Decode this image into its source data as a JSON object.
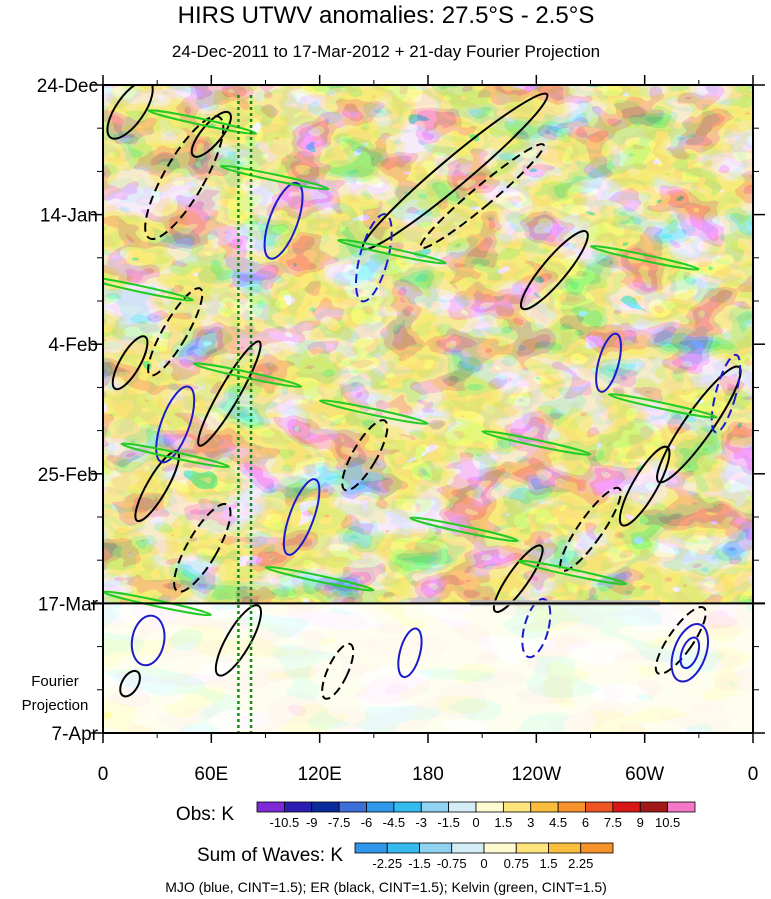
{
  "chart_data": {
    "type": "heatmap",
    "title": "HIRS UTWV anomalies: 27.5°S - 2.5°S",
    "subtitle": "24-Dec-2011 to 17-Mar-2012 + 21-day Fourier Projection",
    "x_ticks": [
      "0",
      "60E",
      "120E",
      "180",
      "120W",
      "60W",
      "0"
    ],
    "x_range_deg": [
      0,
      360
    ],
    "y_ticks": [
      "24-Dec",
      "14-Jan",
      "4-Feb",
      "25-Feb",
      "17-Mar",
      "7-Apr"
    ],
    "y_range_days": [
      0,
      105
    ],
    "projection_start_day": 84,
    "projection_label_line1": "Fourier",
    "projection_label_line2": "Projection",
    "obs_colorbar": {
      "label": "Obs: K",
      "levels": [
        "-10.5",
        "-9",
        "-7.5",
        "-6",
        "-4.5",
        "-3",
        "-1.5",
        "0",
        "1.5",
        "3",
        "4.5",
        "6",
        "7.5",
        "9",
        "10.5"
      ],
      "colors": [
        "#7b2ad6",
        "#2a1fb0",
        "#0a2b9c",
        "#3d6fd9",
        "#2f96ea",
        "#35baf0",
        "#8fd2f2",
        "#d4eef8",
        "#fffbd0",
        "#fde57c",
        "#fbbe3c",
        "#f7932c",
        "#ee5522",
        "#d81818",
        "#a01818",
        "#f478c8"
      ]
    },
    "waves_colorbar": {
      "label": "Sum of Waves: K",
      "levels": [
        "-2.25",
        "-1.5",
        "-0.75",
        "0",
        "0.75",
        "1.5",
        "2.25"
      ],
      "colors": [
        "#2f96ea",
        "#35baf0",
        "#8fd2f2",
        "#d4eef8",
        "#fffbd0",
        "#fde57c",
        "#fbbe3c",
        "#f7932c"
      ]
    },
    "legend_note": "MJO (blue, CINT=1.5); ER (black, CINT=1.5); Kelvin (green, CINT=1.5)",
    "overlays": [
      {
        "name": "MJO",
        "color": "#1b1bcc",
        "cint": 1.5
      },
      {
        "name": "ER",
        "color": "#000000",
        "cint": 1.5
      },
      {
        "name": "Kelvin",
        "color": "#22cc22",
        "cint": 1.5
      }
    ],
    "reference_longitudes_deg": [
      75,
      82
    ]
  }
}
